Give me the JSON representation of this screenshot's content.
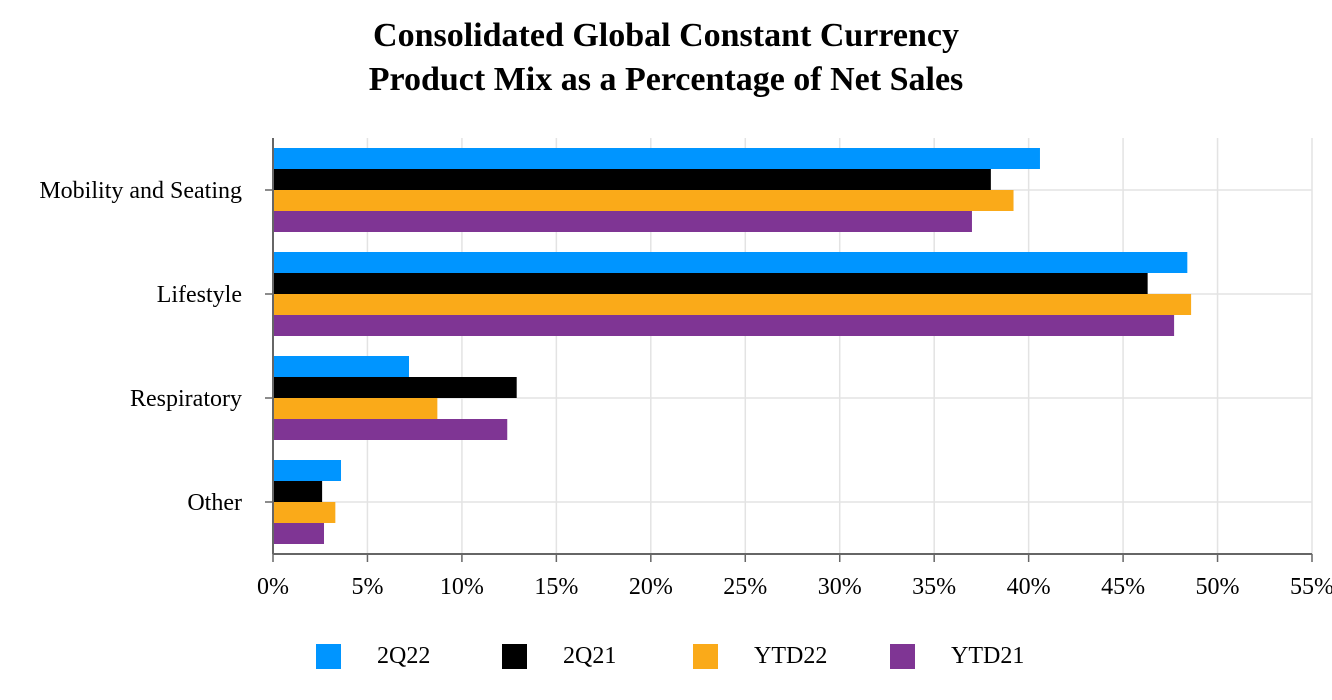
{
  "chart_data": {
    "type": "bar",
    "orientation": "horizontal",
    "title": "Consolidated Global Constant Currency",
    "subtitle": "Product Mix as a Percentage of Net Sales",
    "categories": [
      "Mobility and Seating",
      "Lifestyle",
      "Respiratory",
      "Other"
    ],
    "series": [
      {
        "name": "2Q22",
        "color": "#0095FF",
        "values": [
          40.6,
          48.4,
          7.2,
          3.6
        ]
      },
      {
        "name": "2Q21",
        "color": "#000000",
        "values": [
          38.0,
          46.3,
          12.9,
          2.6
        ]
      },
      {
        "name": "YTD22",
        "color": "#FAAA19",
        "values": [
          39.2,
          48.6,
          8.7,
          3.3
        ]
      },
      {
        "name": "YTD21",
        "color": "#7F3594",
        "values": [
          37.0,
          47.7,
          12.4,
          2.7
        ]
      }
    ],
    "xlim": [
      0,
      55
    ],
    "xticks": [
      "0%",
      "5%",
      "10%",
      "15%",
      "20%",
      "25%",
      "30%",
      "35%",
      "40%",
      "45%",
      "50%",
      "55%"
    ],
    "xtick_values": [
      0,
      5,
      10,
      15,
      20,
      25,
      30,
      35,
      40,
      45,
      50,
      55
    ],
    "grid": true,
    "legend_position": "bottom",
    "xlabel": "",
    "ylabel": ""
  }
}
